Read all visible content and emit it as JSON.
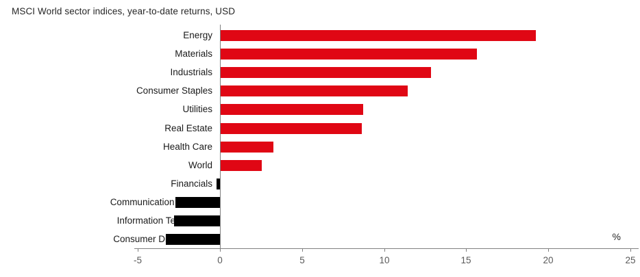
{
  "chart_data": {
    "type": "bar",
    "orientation": "horizontal",
    "title": "MSCI World sector indices, year-to-date returns, USD",
    "unit_label": "%",
    "categories": [
      "Energy",
      "Materials",
      "Industrials",
      "Consumer Staples",
      "Utilities",
      "Real Estate",
      "Health Care",
      "World",
      "Financials",
      "Communication Services",
      "Information Technology",
      "Consumer Discretionary"
    ],
    "values": [
      19.2,
      15.6,
      12.8,
      11.4,
      8.7,
      8.6,
      3.2,
      2.5,
      -0.2,
      -2.7,
      -2.8,
      -3.3
    ],
    "xlim": [
      -5,
      25
    ],
    "xticks": [
      -5,
      0,
      5,
      10,
      15,
      20,
      25
    ],
    "grid": false,
    "legend": "none",
    "colors": {
      "positive_bar": "#e00714",
      "negative_bar": "#000000",
      "axis_line": "#7f7f7f",
      "tick_label": "#595959",
      "category_label": "#1a1a1a",
      "title": "#262626",
      "background": "#ffffff"
    }
  }
}
